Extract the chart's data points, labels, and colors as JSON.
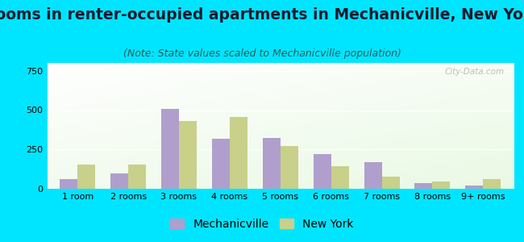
{
  "categories": [
    "1 room",
    "2 rooms",
    "3 rooms",
    "4 rooms",
    "5 rooms",
    "6 rooms",
    "7 rooms",
    "8 rooms",
    "9+ rooms"
  ],
  "mechanicville": [
    60,
    95,
    510,
    320,
    325,
    220,
    170,
    35,
    20
  ],
  "new_york": [
    155,
    155,
    430,
    455,
    270,
    145,
    75,
    45,
    60
  ],
  "mechanicville_color": "#b09fcc",
  "new_york_color": "#c8d08a",
  "title": "Rooms in renter-occupied apartments in Mechanicville, New York",
  "subtitle": "(Note: State values scaled to Mechanicville population)",
  "legend_mechanicville": "Mechanicville",
  "legend_new_york": "New York",
  "ylim": [
    0,
    800
  ],
  "yticks": [
    0,
    250,
    500,
    750
  ],
  "background_outer": "#00e5ff",
  "bar_width": 0.35,
  "title_fontsize": 13.5,
  "subtitle_fontsize": 9,
  "tick_fontsize": 8,
  "legend_fontsize": 10
}
